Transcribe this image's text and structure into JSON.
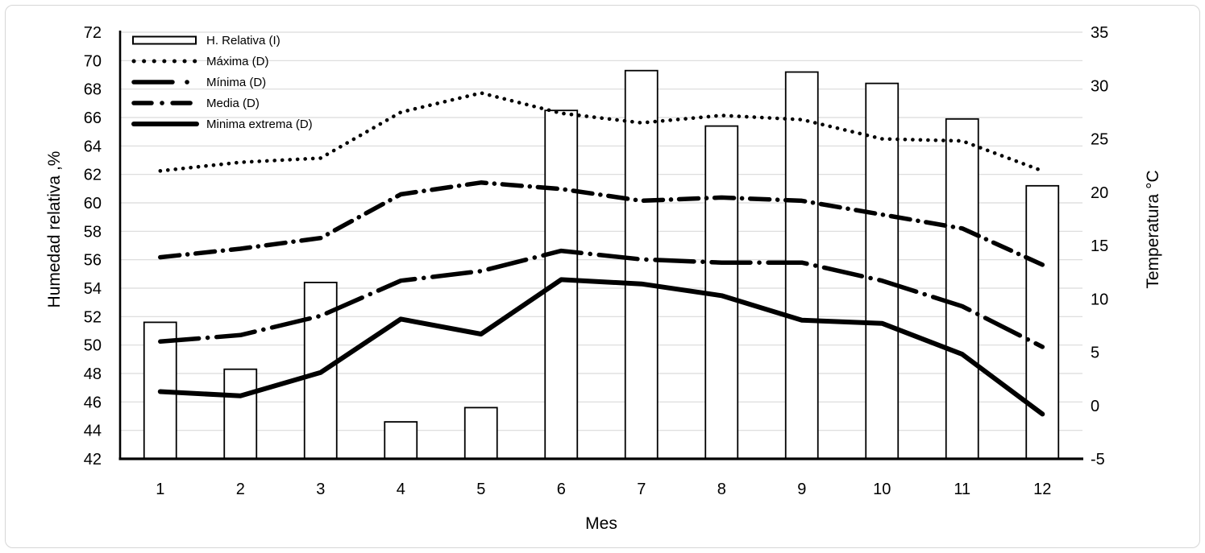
{
  "chart_data": {
    "type": "combo",
    "title": "",
    "x": {
      "label": "Mes",
      "categories": [
        "1",
        "2",
        "3",
        "4",
        "5",
        "6",
        "7",
        "8",
        "9",
        "10",
        "11",
        "12"
      ]
    },
    "y_left": {
      "label": "Humedad relativa ,%",
      "min": 42,
      "max": 72,
      "tick_step": 2
    },
    "y_right": {
      "label": "Temperatura °C",
      "min": -5,
      "max": 35,
      "tick_step": 5
    },
    "grid": "horizontal",
    "legend_position": "top-left-inside",
    "series": [
      {
        "name": "H. Relativa (I)",
        "type": "bar",
        "axis": "left",
        "style": "bar-outline",
        "values": [
          51.6,
          48.3,
          54.4,
          44.6,
          45.6,
          66.5,
          69.3,
          65.4,
          69.2,
          68.4,
          65.9,
          61.2
        ]
      },
      {
        "name": "Máxima (D)",
        "type": "line",
        "axis": "right",
        "style": "dotted",
        "values": [
          22.0,
          22.8,
          23.2,
          27.5,
          29.3,
          27.4,
          26.5,
          27.2,
          26.8,
          25.0,
          24.8,
          22.0
        ]
      },
      {
        "name": "Mínima (D)",
        "type": "line",
        "axis": "right",
        "style": "long-dash-dot",
        "values": [
          6.0,
          6.6,
          8.4,
          11.7,
          12.6,
          14.5,
          13.7,
          13.4,
          13.4,
          11.7,
          9.3,
          5.5
        ]
      },
      {
        "name": "Media (D)",
        "type": "line",
        "axis": "right",
        "style": "dash-dot",
        "values": [
          13.9,
          14.7,
          15.7,
          19.8,
          20.9,
          20.3,
          19.2,
          19.5,
          19.2,
          17.9,
          16.6,
          13.2
        ]
      },
      {
        "name": "Minima extrema (D)",
        "type": "line",
        "axis": "right",
        "style": "solid",
        "values": [
          1.3,
          0.9,
          3.1,
          8.1,
          6.7,
          11.8,
          11.4,
          10.3,
          8.0,
          7.7,
          4.8,
          -0.8
        ]
      }
    ],
    "colors": {
      "series_stroke": "#000000",
      "bar_fill": "#ffffff",
      "gridline": "#d9d9d9",
      "axis_line": "#000000",
      "text": "#000000",
      "figure_border": "#d6d6d6"
    }
  }
}
